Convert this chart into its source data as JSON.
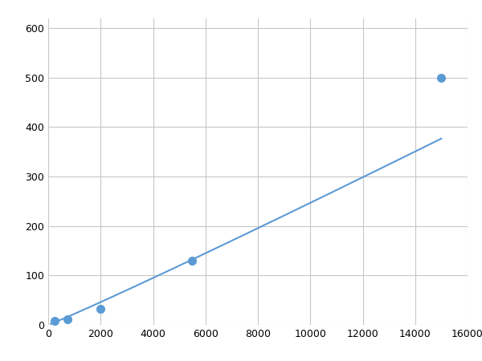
{
  "x_data": [
    250,
    750,
    2000,
    5500,
    15000
  ],
  "y_data": [
    8,
    12,
    32,
    130,
    500
  ],
  "line_color": "#5b9bd5",
  "marker_color": "#5b9bd5",
  "marker_size": 7,
  "line_width": 1.5,
  "xlim": [
    0,
    16000
  ],
  "ylim": [
    0,
    620
  ],
  "xticks": [
    0,
    2000,
    4000,
    6000,
    8000,
    10000,
    12000,
    14000,
    16000
  ],
  "yticks": [
    0,
    100,
    200,
    300,
    400,
    500,
    600
  ],
  "grid_color": "#c8c8c8",
  "background_color": "#ffffff",
  "figsize": [
    6.0,
    4.5
  ],
  "dpi": 100
}
